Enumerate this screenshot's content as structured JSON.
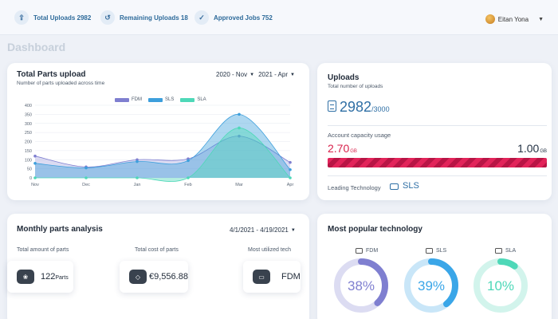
{
  "topbar": {
    "stats": [
      {
        "icon": "upload-icon",
        "label": "Total Uploads 2982"
      },
      {
        "icon": "history-icon",
        "label": "Remaining Uploads 18"
      },
      {
        "icon": "check-icon",
        "label": "Approved Jobs 752"
      }
    ],
    "user_name": "Eitan Yona"
  },
  "page_title": "Dashboard",
  "parts_upload": {
    "title": "Total Parts upload",
    "subtitle": "Number of parts uploaded across time",
    "range_from": "2020 - Nov",
    "range_to": "2021 - Apr",
    "chart_data": {
      "type": "area",
      "x": [
        "Nov",
        "Dec",
        "Jan",
        "Feb",
        "Mar",
        "Apr"
      ],
      "ylim": [
        0,
        400
      ],
      "yticks": [
        0,
        50,
        100,
        150,
        200,
        250,
        300,
        350,
        400
      ],
      "grid": true,
      "legend": "top",
      "series": [
        {
          "name": "FDM",
          "color": "#7f7fd0",
          "values": [
            120,
            60,
            100,
            105,
            230,
            85
          ]
        },
        {
          "name": "SLS",
          "color": "#3d9fdc",
          "values": [
            80,
            55,
            90,
            95,
            350,
            45
          ]
        },
        {
          "name": "SLA",
          "color": "#4ed8b8",
          "values": [
            0,
            0,
            0,
            0,
            275,
            0
          ]
        }
      ]
    }
  },
  "uploads": {
    "title": "Uploads",
    "subtitle": "Total number of uploads",
    "count": "2982",
    "limit": "/3000",
    "capacity_label": "Account capacity usage",
    "used_value": "2.70",
    "used_unit": "GB",
    "total_value": "1.00",
    "total_unit": "GB",
    "capacity_fraction": 1.0,
    "leading_label": "Leading Technology",
    "leading_value": "SLS",
    "accent": "#2f6fa5",
    "bar_color": "#e2245a"
  },
  "monthly": {
    "title": "Monthly parts analysis",
    "range": "4/1/2021 - 4/19/2021",
    "total_amount_label": "Total amount of parts",
    "total_amount_value": "122",
    "total_amount_unit": "Parts",
    "total_cost_label": "Total cost of parts",
    "total_cost_value": "€9,556.88",
    "most_tech_label": "Most utilized tech",
    "most_tech_value": "FDM"
  },
  "popular": {
    "title": "Most popular technology",
    "items": [
      {
        "name": "FDM",
        "percent_label": "38%",
        "percent": 38,
        "color": "#7f7fd0",
        "track": "#dcdcf2"
      },
      {
        "name": "SLS",
        "percent_label": "39%",
        "percent": 39,
        "color": "#3aa6e8",
        "track": "#c9e6f8"
      },
      {
        "name": "SLA",
        "percent_label": "10%",
        "percent": 10,
        "color": "#4ed8b8",
        "track": "#d2f4ec"
      }
    ]
  }
}
